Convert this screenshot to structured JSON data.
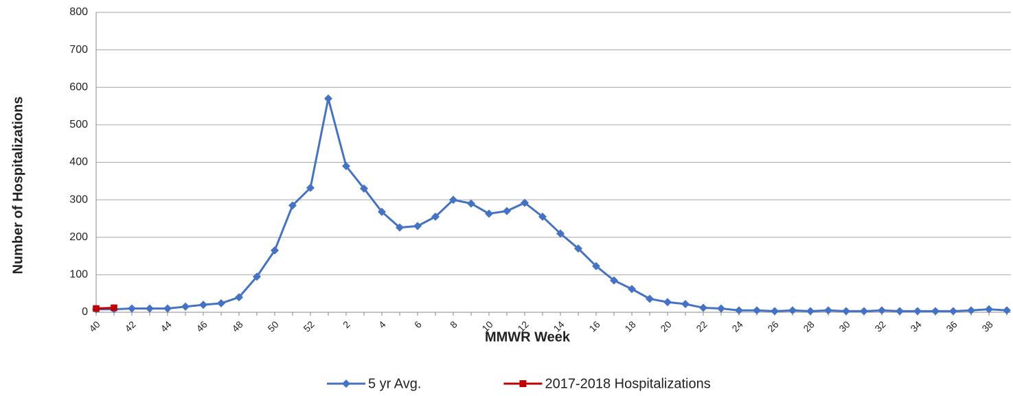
{
  "chart_data": {
    "type": "line",
    "xlabel": "MMWR Week",
    "ylabel": "Number of Hospitalizations",
    "categories": [
      "40",
      null,
      "42",
      null,
      "44",
      null,
      "46",
      null,
      "48",
      null,
      "50",
      null,
      "52",
      null,
      "2",
      null,
      "4",
      null,
      "6",
      null,
      "8",
      null,
      "10",
      null,
      "12",
      null,
      "14",
      null,
      "16",
      null,
      "18",
      null,
      "20",
      null,
      "22",
      null,
      "24",
      null,
      "26",
      null,
      "28",
      null,
      "30",
      null,
      "32",
      null,
      "34",
      null,
      "36",
      null,
      "38",
      null
    ],
    "series": [
      {
        "name": "5 yr Avg.",
        "color": "#4472c4",
        "marker": "diamond",
        "values": [
          8,
          8,
          10,
          10,
          10,
          15,
          20,
          24,
          40,
          95,
          165,
          285,
          332,
          570,
          390,
          330,
          268,
          226,
          230,
          255,
          300,
          290,
          263,
          270,
          292,
          255,
          210,
          170,
          123,
          85,
          62,
          36,
          27,
          22,
          12,
          10,
          5,
          5,
          3,
          5,
          3,
          5,
          3,
          3,
          5,
          3,
          3,
          3,
          3,
          5,
          8,
          5
        ]
      },
      {
        "name": "2017-2018 Hospitalizations",
        "color": "#c00000",
        "marker": "square",
        "values": [
          10,
          12,
          null,
          null,
          null,
          null,
          null,
          null,
          null,
          null,
          null,
          null,
          null,
          null,
          null,
          null,
          null,
          null,
          null,
          null,
          null,
          null,
          null,
          null,
          null,
          null,
          null,
          null,
          null,
          null,
          null,
          null,
          null,
          null,
          null,
          null,
          null,
          null,
          null,
          null,
          null,
          null,
          null,
          null,
          null,
          null,
          null,
          null,
          null,
          null,
          null,
          null
        ]
      }
    ],
    "ylim": [
      0,
      800
    ],
    "yticks": [
      0,
      100,
      200,
      300,
      400,
      500,
      600,
      700,
      800
    ],
    "grid": true
  }
}
